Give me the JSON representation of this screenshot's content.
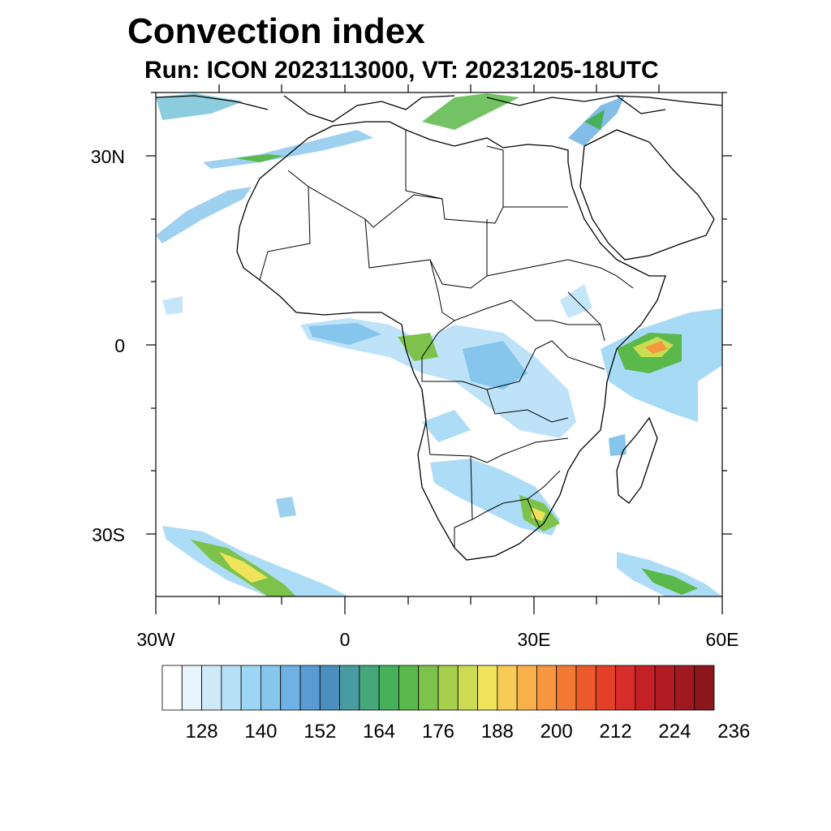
{
  "title": "Convection index",
  "subtitle": "Run: ICON 2023113000,  VT: 20231205-18UTC",
  "axes": {
    "lat_labels": [
      "30N",
      "0",
      "30S"
    ],
    "lon_labels": [
      "30W",
      "0",
      "30E",
      "60E"
    ]
  },
  "colorbar": {
    "labels": [
      "128",
      "140",
      "152",
      "164",
      "176",
      "188",
      "200",
      "212",
      "224",
      "236"
    ],
    "colors": [
      "#ffffff",
      "#e8f4fc",
      "#cfe9f8",
      "#b7e0f7",
      "#9dd6f4",
      "#86c6ec",
      "#6eb1e2",
      "#5a9bd3",
      "#4b8fbf",
      "#489b9f",
      "#46a77b",
      "#47b05a",
      "#5bb84a",
      "#7dc24a",
      "#a6cf4d",
      "#cbdc52",
      "#eee35a",
      "#f8cb56",
      "#f8b04b",
      "#f6963e",
      "#f27833",
      "#ec5a2c",
      "#e24128",
      "#d62c2a",
      "#c62027",
      "#b31b24",
      "#a01920",
      "#8b171c"
    ]
  }
}
